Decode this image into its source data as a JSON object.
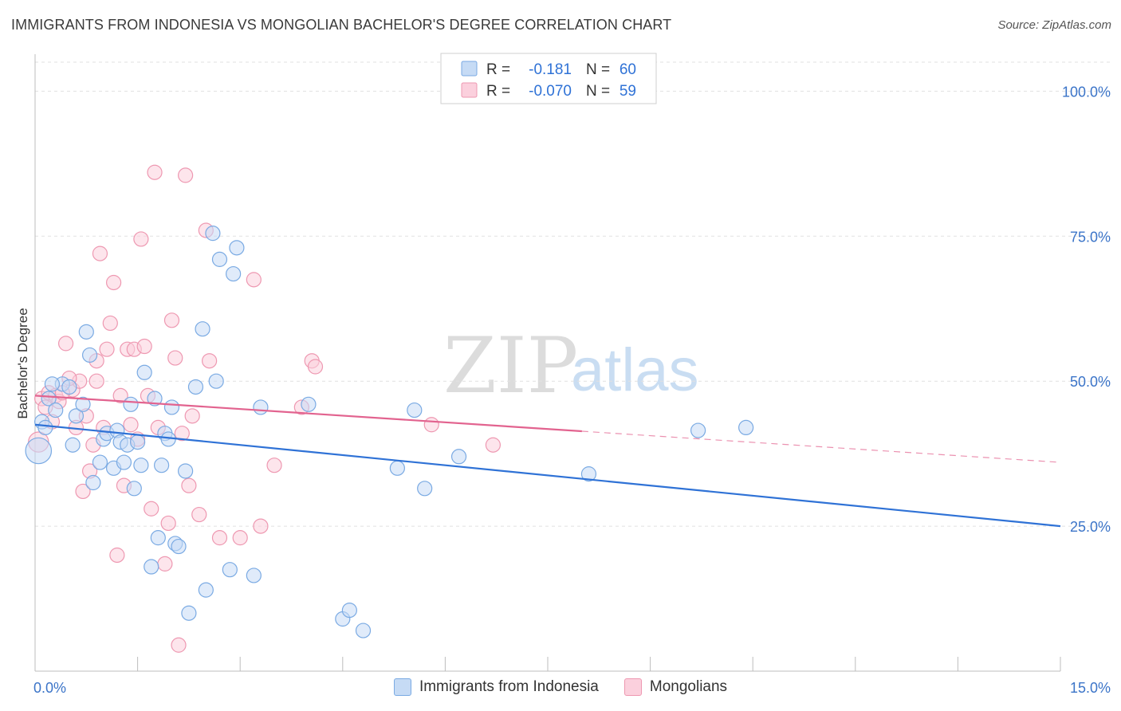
{
  "title": "IMMIGRANTS FROM INDONESIA VS MONGOLIAN BACHELOR'S DEGREE CORRELATION CHART",
  "source": "Source: ZipAtlas.com",
  "watermark": {
    "zip": "ZIP",
    "atlas": "atlas"
  },
  "colors": {
    "blue_fill": "#c6dbf5",
    "blue_stroke": "#7aaae3",
    "blue_line": "#2f72d6",
    "pink_fill": "#fbd0dd",
    "pink_stroke": "#ee98b1",
    "pink_line": "#e2638f",
    "axis_text": "#3b74c8"
  },
  "legend": {
    "blue": {
      "r_label": "R =",
      "r_value": "-0.181",
      "n_label": "N =",
      "n_value": "60"
    },
    "pink": {
      "r_label": "R =",
      "r_value": "-0.070",
      "n_label": "N =",
      "n_value": "59"
    }
  },
  "bottom_legend": [
    "Immigrants from Indonesia",
    "Mongolians"
  ],
  "chart_data": {
    "type": "scatter",
    "title": "IMMIGRANTS FROM INDONESIA VS MONGOLIAN BACHELOR'S DEGREE CORRELATION CHART",
    "xlabel": "",
    "ylabel": "Bachelor's Degree",
    "xlim": [
      0,
      15
    ],
    "ylim": [
      0,
      105
    ],
    "x_tick_labels": [
      "0.0%",
      "15.0%"
    ],
    "y_ticks": [
      25,
      50,
      75,
      100
    ],
    "y_tick_labels": [
      "25.0%",
      "50.0%",
      "75.0%",
      "100.0%"
    ],
    "grid": true,
    "series": [
      {
        "name": "Immigrants from Indonesia",
        "r": -0.181,
        "n": 60,
        "trend": {
          "x0": 0,
          "y0": 42.5,
          "x1": 15,
          "y1": 25.0,
          "solid_until": 15
        },
        "points": [
          [
            0.05,
            38,
            1.8
          ],
          [
            0.1,
            43,
            1.0
          ],
          [
            0.15,
            42,
            1.0
          ],
          [
            0.2,
            47,
            1.0
          ],
          [
            0.3,
            45,
            1.0
          ],
          [
            0.4,
            49.5,
            1.0
          ],
          [
            0.5,
            49,
            1.0
          ],
          [
            0.55,
            39,
            1.0
          ],
          [
            0.6,
            44,
            1.0
          ],
          [
            0.7,
            46,
            1.0
          ],
          [
            0.75,
            58.5,
            1.0
          ],
          [
            0.8,
            54.5,
            1.0
          ],
          [
            0.85,
            32.5,
            1.0
          ],
          [
            0.95,
            36,
            1.0
          ],
          [
            1.0,
            40,
            1.0
          ],
          [
            1.05,
            41,
            1.0
          ],
          [
            1.15,
            35,
            1.0
          ],
          [
            1.2,
            41.5,
            1.0
          ],
          [
            1.25,
            39.5,
            1.0
          ],
          [
            1.3,
            36,
            1.0
          ],
          [
            1.35,
            39,
            1.0
          ],
          [
            1.4,
            46,
            1.0
          ],
          [
            1.45,
            31.5,
            1.0
          ],
          [
            1.55,
            35.5,
            1.0
          ],
          [
            1.6,
            51.5,
            1.0
          ],
          [
            1.5,
            39.5,
            1.0
          ],
          [
            1.7,
            18,
            1.0
          ],
          [
            1.75,
            47,
            1.0
          ],
          [
            1.8,
            23,
            1.0
          ],
          [
            1.85,
            35.5,
            1.0
          ],
          [
            1.9,
            41,
            1.0
          ],
          [
            1.95,
            40,
            1.0
          ],
          [
            2.0,
            45.5,
            1.0
          ],
          [
            2.05,
            22,
            1.0
          ],
          [
            2.1,
            21.5,
            1.0
          ],
          [
            2.2,
            34.5,
            1.0
          ],
          [
            2.25,
            10,
            1.0
          ],
          [
            2.35,
            49,
            1.0
          ],
          [
            2.45,
            59,
            1.0
          ],
          [
            2.5,
            14,
            1.0
          ],
          [
            2.6,
            75.5,
            1.0
          ],
          [
            2.65,
            50,
            1.0
          ],
          [
            2.7,
            71,
            1.0
          ],
          [
            2.9,
            68.5,
            1.0
          ],
          [
            2.95,
            73,
            1.0
          ],
          [
            2.85,
            17.5,
            1.0
          ],
          [
            3.2,
            16.5,
            1.0
          ],
          [
            3.3,
            45.5,
            1.0
          ],
          [
            4.0,
            46,
            1.0
          ],
          [
            4.5,
            9,
            1.0
          ],
          [
            4.6,
            10.5,
            1.0
          ],
          [
            4.8,
            7,
            1.0
          ],
          [
            5.3,
            35,
            1.0
          ],
          [
            5.55,
            45,
            1.0
          ],
          [
            5.7,
            31.5,
            1.0
          ],
          [
            6.2,
            37,
            1.0
          ],
          [
            8.1,
            34,
            1.0
          ],
          [
            9.7,
            41.5,
            1.0
          ],
          [
            10.4,
            42,
            1.0
          ],
          [
            0.25,
            49.5,
            1.0
          ]
        ]
      },
      {
        "name": "Mongolians",
        "r": -0.07,
        "n": 59,
        "trend": {
          "x0": 0,
          "y0": 47.5,
          "x1": 15,
          "y1": 36.0,
          "solid_until": 8
        },
        "points": [
          [
            0.05,
            39.5,
            1.4
          ],
          [
            0.1,
            47,
            1.0
          ],
          [
            0.15,
            45.5,
            1.0
          ],
          [
            0.2,
            48,
            1.0
          ],
          [
            0.3,
            47.5,
            1.0
          ],
          [
            0.35,
            46.5,
            1.0
          ],
          [
            0.45,
            56.5,
            1.0
          ],
          [
            0.55,
            48.5,
            1.0
          ],
          [
            0.6,
            42,
            1.0
          ],
          [
            0.65,
            50,
            1.0
          ],
          [
            0.7,
            31,
            1.0
          ],
          [
            0.8,
            34.5,
            1.0
          ],
          [
            0.85,
            39,
            1.0
          ],
          [
            0.9,
            53.5,
            1.0
          ],
          [
            0.95,
            72,
            1.0
          ],
          [
            1.0,
            42,
            1.0
          ],
          [
            1.05,
            55.5,
            1.0
          ],
          [
            1.1,
            60,
            1.0
          ],
          [
            1.15,
            67,
            1.0
          ],
          [
            1.2,
            20,
            1.0
          ],
          [
            1.3,
            32,
            1.0
          ],
          [
            1.35,
            55.5,
            1.0
          ],
          [
            1.4,
            42.5,
            1.0
          ],
          [
            1.45,
            55.5,
            1.0
          ],
          [
            1.5,
            40,
            1.0
          ],
          [
            1.55,
            74.5,
            1.0
          ],
          [
            1.6,
            56,
            1.0
          ],
          [
            1.65,
            47.5,
            1.0
          ],
          [
            1.7,
            28,
            1.0
          ],
          [
            1.75,
            86,
            1.0
          ],
          [
            1.8,
            42,
            1.0
          ],
          [
            1.9,
            18.5,
            1.0
          ],
          [
            1.95,
            25.5,
            1.0
          ],
          [
            2.0,
            60.5,
            1.0
          ],
          [
            2.05,
            54,
            1.0
          ],
          [
            2.1,
            4.5,
            1.0
          ],
          [
            2.15,
            41,
            1.0
          ],
          [
            2.2,
            85.5,
            1.0
          ],
          [
            2.25,
            32,
            1.0
          ],
          [
            2.3,
            44,
            1.0
          ],
          [
            2.4,
            27,
            1.0
          ],
          [
            2.5,
            76,
            1.0
          ],
          [
            2.55,
            53.5,
            1.0
          ],
          [
            2.7,
            23,
            1.0
          ],
          [
            3.0,
            23,
            1.0
          ],
          [
            3.2,
            67.5,
            1.0
          ],
          [
            3.3,
            25,
            1.0
          ],
          [
            3.5,
            35.5,
            1.0
          ],
          [
            3.9,
            45.5,
            1.0
          ],
          [
            4.05,
            53.5,
            1.0
          ],
          [
            4.1,
            52.5,
            1.0
          ],
          [
            5.8,
            42.5,
            1.0
          ],
          [
            6.7,
            39,
            1.0
          ],
          [
            0.4,
            48,
            1.0
          ],
          [
            0.5,
            50.5,
            1.0
          ],
          [
            0.25,
            43,
            1.0
          ],
          [
            0.75,
            44,
            1.0
          ],
          [
            1.25,
            47.5,
            1.0
          ],
          [
            0.9,
            50,
            1.0
          ]
        ]
      }
    ]
  }
}
